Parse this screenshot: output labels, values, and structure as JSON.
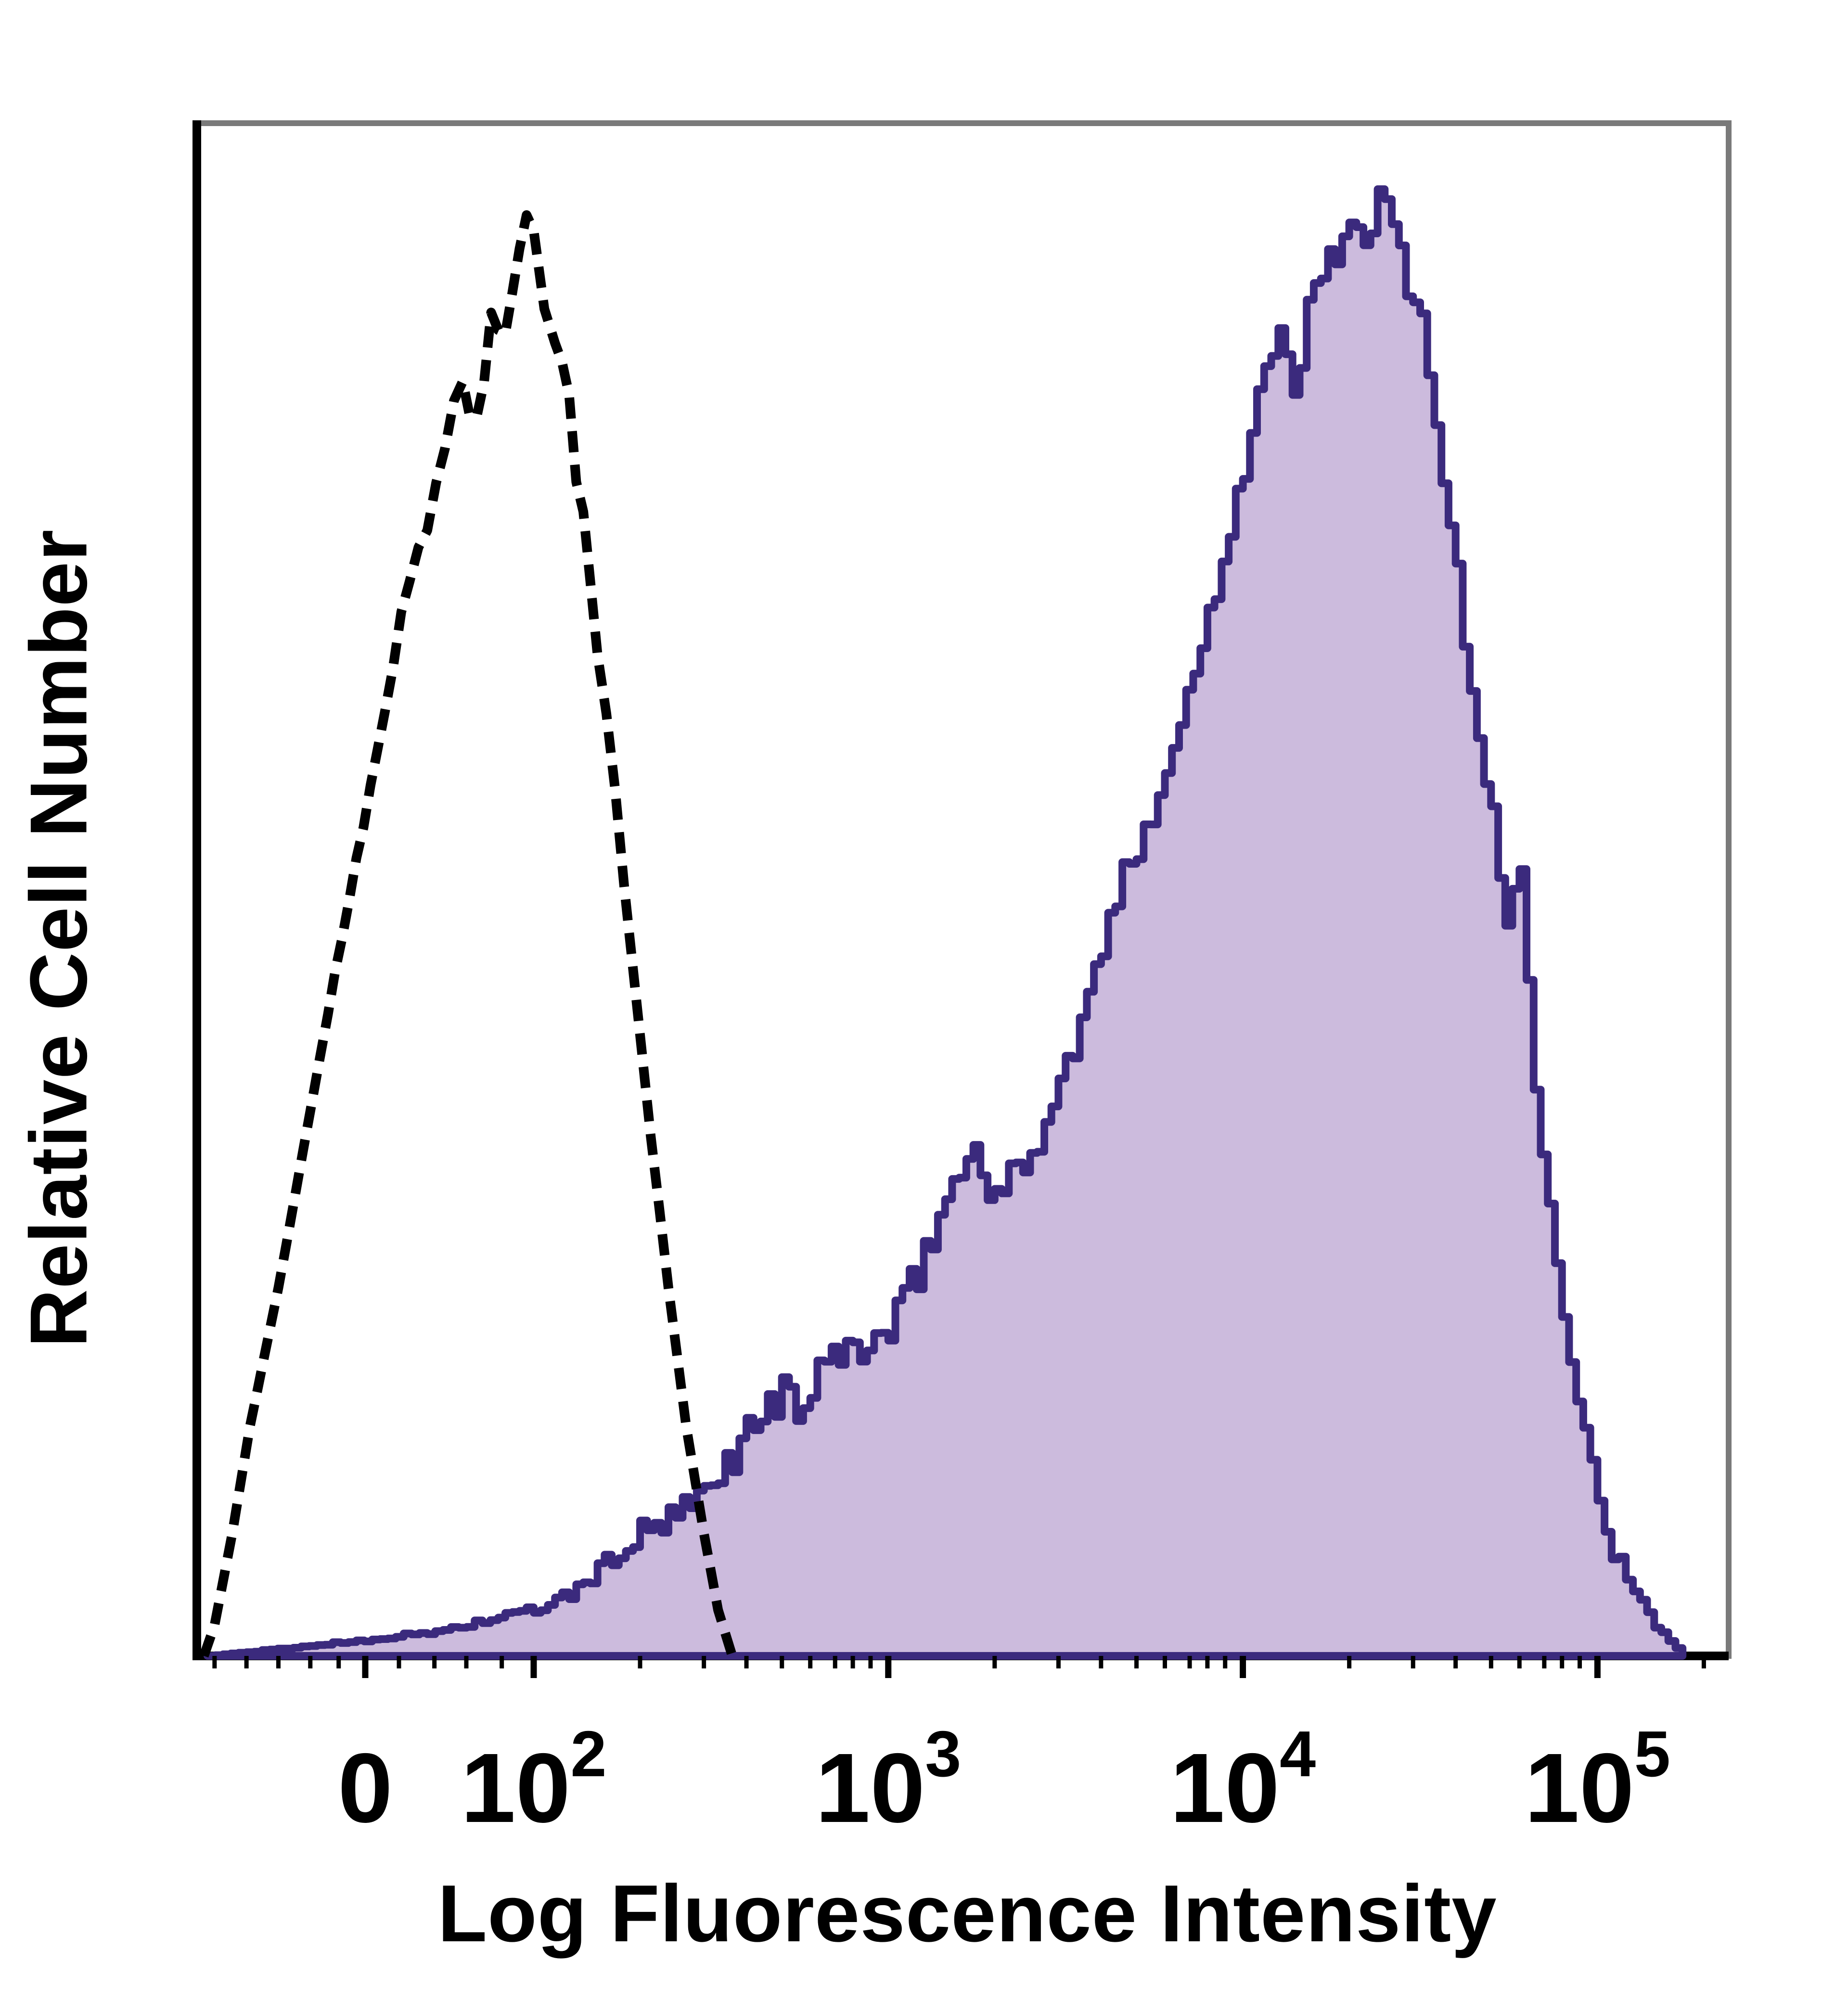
{
  "colors": {
    "background": "#ffffff",
    "frame": "#7a7a7a",
    "axis": "#000000",
    "sample_stroke": "#3b2a7d",
    "sample_fill": "#c9b7db",
    "control_stroke": "#000000"
  },
  "chart_data": {
    "type": "area",
    "subtype": "flow-cytometry-histogram",
    "title": "",
    "xlabel": "Log Fluorescence Intensity",
    "ylabel": "Relative Cell Number",
    "x_scale": "logicle",
    "x_range_log10": [
      1.05,
      5.37
    ],
    "ylim": [
      0,
      100
    ],
    "grid": false,
    "legend": "none",
    "x_ticks": [
      {
        "base": "0",
        "exp": "",
        "log": 1.525
      },
      {
        "base": "10",
        "exp": "2",
        "log": 2.0
      },
      {
        "base": "10",
        "exp": "3",
        "log": 3.0
      },
      {
        "base": "10",
        "exp": "4",
        "log": 4.0
      },
      {
        "base": "10",
        "exp": "5",
        "log": 5.0
      }
    ],
    "x_minor_ticks_log": [
      1.1,
      1.19,
      1.28,
      1.37,
      1.45,
      1.62,
      1.72,
      1.81,
      1.91,
      2.3,
      2.48,
      2.6,
      2.7,
      2.78,
      2.85,
      2.9,
      2.95,
      3.3,
      3.48,
      3.6,
      3.7,
      3.78,
      3.85,
      3.9,
      3.95,
      4.3,
      4.48,
      4.6,
      4.7,
      4.78,
      4.85,
      4.9,
      4.95,
      5.3
    ],
    "series": [
      {
        "name": "stained sample (filled purple histogram)",
        "style": "filled-steps",
        "stroke": "#3b2a7d",
        "fill": "#c9b7db",
        "fill_opacity": 0.95,
        "stroke_width": 16,
        "points": [
          [
            1.08,
            0
          ],
          [
            1.3,
            0.5
          ],
          [
            1.5,
            1
          ],
          [
            1.7,
            1.5
          ],
          [
            1.9,
            2.5
          ],
          [
            2.0,
            3
          ],
          [
            2.1,
            4
          ],
          [
            2.2,
            6
          ],
          [
            2.3,
            8
          ],
          [
            2.4,
            9
          ],
          [
            2.5,
            11
          ],
          [
            2.58,
            14
          ],
          [
            2.64,
            16
          ],
          [
            2.7,
            17
          ],
          [
            2.76,
            16
          ],
          [
            2.84,
            20
          ],
          [
            2.92,
            20
          ],
          [
            3.0,
            21
          ],
          [
            3.08,
            25
          ],
          [
            3.16,
            30
          ],
          [
            3.24,
            33
          ],
          [
            3.3,
            30
          ],
          [
            3.38,
            32
          ],
          [
            3.46,
            36
          ],
          [
            3.54,
            41
          ],
          [
            3.62,
            48
          ],
          [
            3.7,
            53
          ],
          [
            3.78,
            58
          ],
          [
            3.86,
            64
          ],
          [
            3.94,
            72
          ],
          [
            4.0,
            78
          ],
          [
            4.06,
            84
          ],
          [
            4.1,
            86
          ],
          [
            4.14,
            82
          ],
          [
            4.18,
            88
          ],
          [
            4.24,
            91
          ],
          [
            4.3,
            94
          ],
          [
            4.34,
            91
          ],
          [
            4.38,
            95
          ],
          [
            4.42,
            93
          ],
          [
            4.46,
            90
          ],
          [
            4.5,
            87
          ],
          [
            4.54,
            81
          ],
          [
            4.58,
            74
          ],
          [
            4.62,
            66
          ],
          [
            4.66,
            60
          ],
          [
            4.7,
            55
          ],
          [
            4.74,
            48
          ],
          [
            4.78,
            51
          ],
          [
            4.82,
            38
          ],
          [
            4.86,
            30
          ],
          [
            4.92,
            20
          ],
          [
            4.98,
            12
          ],
          [
            5.04,
            7
          ],
          [
            5.1,
            4
          ],
          [
            5.16,
            2
          ],
          [
            5.2,
            1
          ],
          [
            5.24,
            0
          ]
        ]
      },
      {
        "name": "negative control (dashed black histogram)",
        "style": "dashed-line",
        "stroke": "#000000",
        "stroke_width": 20,
        "dash": "44 26",
        "points": [
          [
            1.07,
            0
          ],
          [
            1.1,
            2
          ],
          [
            1.15,
            8
          ],
          [
            1.2,
            15
          ],
          [
            1.28,
            24
          ],
          [
            1.35,
            33
          ],
          [
            1.42,
            42
          ],
          [
            1.5,
            52
          ],
          [
            1.58,
            62
          ],
          [
            1.65,
            70
          ],
          [
            1.7,
            74
          ],
          [
            1.75,
            79
          ],
          [
            1.8,
            84
          ],
          [
            1.84,
            80
          ],
          [
            1.88,
            88
          ],
          [
            1.92,
            85
          ],
          [
            1.96,
            91
          ],
          [
            2.0,
            94
          ],
          [
            2.03,
            89
          ],
          [
            2.06,
            86
          ],
          [
            2.1,
            81
          ],
          [
            2.14,
            74
          ],
          [
            2.18,
            66
          ],
          [
            2.23,
            56
          ],
          [
            2.28,
            45
          ],
          [
            2.33,
            34
          ],
          [
            2.38,
            24
          ],
          [
            2.43,
            15
          ],
          [
            2.48,
            8
          ],
          [
            2.52,
            3
          ],
          [
            2.56,
            0
          ]
        ]
      }
    ]
  }
}
